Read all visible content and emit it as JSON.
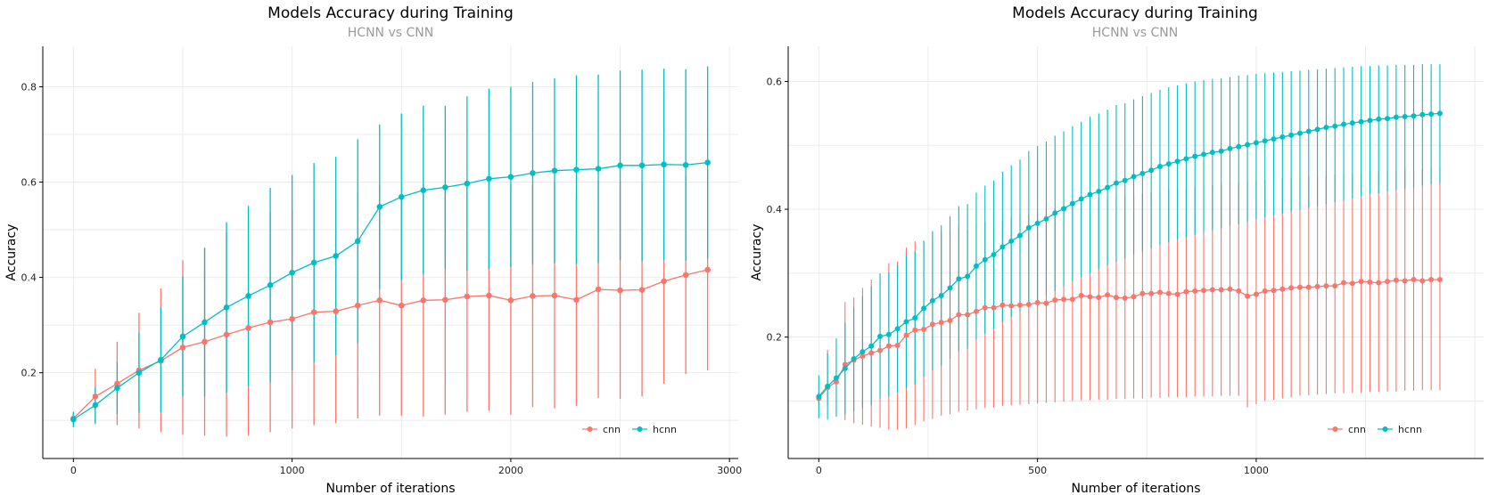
{
  "chart_data": [
    {
      "type": "line",
      "title": "Models Accuracy during Training",
      "subtitle": "HCNN vs CNN",
      "xlabel": "Number of iterations",
      "ylabel": "Accuracy",
      "xlim": [
        -140,
        3040
      ],
      "ylim": [
        0.02,
        0.885
      ],
      "xticks": [
        0,
        1000,
        2000,
        3000
      ],
      "xtick_labels": [
        "0",
        "1000",
        "2000",
        "3000"
      ],
      "yticks": [
        0.2,
        0.4,
        0.6,
        0.8
      ],
      "ytick_labels": [
        "0.2",
        "0.4",
        "0.6",
        "0.8"
      ],
      "grid": true,
      "legend_position": "bottom-right",
      "x": [
        0,
        100,
        200,
        300,
        400,
        500,
        600,
        700,
        800,
        900,
        1000,
        1100,
        1200,
        1300,
        1400,
        1500,
        1600,
        1700,
        1800,
        1900,
        2000,
        2100,
        2200,
        2300,
        2400,
        2500,
        2600,
        2700,
        2800,
        2900
      ],
      "series": [
        {
          "name": "cnn",
          "color": "#F8766D",
          "values": [
            0.104,
            0.15,
            0.177,
            0.205,
            0.225,
            0.253,
            0.265,
            0.28,
            0.294,
            0.306,
            0.313,
            0.327,
            0.329,
            0.341,
            0.352,
            0.341,
            0.352,
            0.353,
            0.36,
            0.362,
            0.352,
            0.361,
            0.362,
            0.353,
            0.375,
            0.373,
            0.374,
            0.392,
            0.405,
            0.416
          ],
          "lower": [
            0.09,
            0.092,
            0.09,
            0.083,
            0.075,
            0.07,
            0.068,
            0.066,
            0.068,
            0.075,
            0.083,
            0.09,
            0.094,
            0.104,
            0.11,
            0.11,
            0.108,
            0.112,
            0.118,
            0.12,
            0.112,
            0.128,
            0.125,
            0.13,
            0.147,
            0.145,
            0.15,
            0.177,
            0.197,
            0.205
          ],
          "upper": [
            0.118,
            0.208,
            0.265,
            0.326,
            0.377,
            0.436,
            0.462,
            0.494,
            0.52,
            0.537,
            0.543,
            0.564,
            0.564,
            0.578,
            0.594,
            0.572,
            0.596,
            0.594,
            0.602,
            0.604,
            0.592,
            0.594,
            0.599,
            0.576,
            0.603,
            0.601,
            0.598,
            0.607,
            0.613,
            0.627
          ]
        },
        {
          "name": "hcnn",
          "color": "#00BFC4",
          "values": [
            0.102,
            0.132,
            0.168,
            0.2,
            0.227,
            0.276,
            0.306,
            0.337,
            0.361,
            0.384,
            0.41,
            0.431,
            0.445,
            0.476,
            0.548,
            0.569,
            0.583,
            0.589,
            0.597,
            0.607,
            0.611,
            0.619,
            0.624,
            0.626,
            0.628,
            0.635,
            0.635,
            0.637,
            0.636,
            0.641
          ],
          "lower": [
            0.086,
            0.094,
            0.113,
            0.116,
            0.117,
            0.15,
            0.15,
            0.158,
            0.172,
            0.18,
            0.205,
            0.222,
            0.237,
            0.262,
            0.375,
            0.394,
            0.406,
            0.418,
            0.414,
            0.418,
            0.422,
            0.428,
            0.43,
            0.428,
            0.43,
            0.436,
            0.434,
            0.436,
            0.435,
            0.439
          ],
          "upper": [
            0.118,
            0.17,
            0.223,
            0.284,
            0.337,
            0.402,
            0.462,
            0.516,
            0.55,
            0.588,
            0.615,
            0.64,
            0.653,
            0.69,
            0.721,
            0.744,
            0.76,
            0.76,
            0.78,
            0.796,
            0.8,
            0.81,
            0.818,
            0.824,
            0.826,
            0.834,
            0.836,
            0.838,
            0.837,
            0.843
          ]
        }
      ]
    },
    {
      "type": "line",
      "title": "Models Accuracy during Training",
      "subtitle": "HCNN vs CNN",
      "xlabel": "Number of iterations",
      "ylabel": "Accuracy",
      "xlim": [
        -70,
        1520
      ],
      "ylim": [
        0.01,
        0.655
      ],
      "xticks": [
        0,
        500,
        1000
      ],
      "xtick_labels": [
        "0",
        "500",
        "1000"
      ],
      "yticks": [
        0.2,
        0.4,
        0.6
      ],
      "ytick_labels": [
        "0.2",
        "0.4",
        "0.6"
      ],
      "grid": true,
      "legend_position": "bottom-right",
      "x_generated": {
        "start": 0,
        "step": 20,
        "count": 72
      },
      "series": [
        {
          "name": "cnn",
          "color": "#F8766D",
          "values": [
            0.104,
            0.121,
            0.13,
            0.157,
            0.164,
            0.17,
            0.175,
            0.179,
            0.186,
            0.187,
            0.203,
            0.211,
            0.212,
            0.22,
            0.223,
            0.226,
            0.235,
            0.235,
            0.24,
            0.246,
            0.246,
            0.25,
            0.249,
            0.25,
            0.251,
            0.254,
            0.253,
            0.258,
            0.259,
            0.259,
            0.265,
            0.263,
            0.262,
            0.266,
            0.262,
            0.261,
            0.263,
            0.268,
            0.268,
            0.27,
            0.268,
            0.267,
            0.271,
            0.272,
            0.273,
            0.274,
            0.274,
            0.275,
            0.272,
            0.264,
            0.267,
            0.272,
            0.273,
            0.275,
            0.277,
            0.278,
            0.278,
            0.279,
            0.28,
            0.28,
            0.285,
            0.284,
            0.287,
            0.286,
            0.285,
            0.287,
            0.289,
            0.288,
            0.29,
            0.288,
            0.29,
            0.29
          ],
          "lower": [
            0.095,
            0.095,
            0.08,
            0.07,
            0.065,
            0.063,
            0.06,
            0.058,
            0.055,
            0.055,
            0.057,
            0.062,
            0.068,
            0.072,
            0.077,
            0.079,
            0.083,
            0.085,
            0.087,
            0.089,
            0.09,
            0.092,
            0.093,
            0.094,
            0.095,
            0.096,
            0.097,
            0.098,
            0.099,
            0.1,
            0.101,
            0.101,
            0.102,
            0.102,
            0.103,
            0.103,
            0.104,
            0.104,
            0.105,
            0.105,
            0.106,
            0.106,
            0.106,
            0.107,
            0.107,
            0.107,
            0.108,
            0.108,
            0.108,
            0.09,
            0.095,
            0.1,
            0.102,
            0.104,
            0.106,
            0.108,
            0.109,
            0.11,
            0.111,
            0.112,
            0.112,
            0.113,
            0.113,
            0.114,
            0.114,
            0.115,
            0.115,
            0.116,
            0.116,
            0.117,
            0.117,
            0.117
          ],
          "upper": [
            0.113,
            0.18,
            0.19,
            0.255,
            0.262,
            0.277,
            0.29,
            0.3,
            0.316,
            0.318,
            0.34,
            0.35,
            0.35,
            0.362,
            0.364,
            0.366,
            0.372,
            0.368,
            0.374,
            0.38,
            0.38,
            0.383,
            0.386,
            0.389,
            0.392,
            0.395,
            0.398,
            0.401,
            0.404,
            0.407,
            0.41,
            0.412,
            0.415,
            0.417,
            0.419,
            0.421,
            0.423,
            0.425,
            0.427,
            0.429,
            0.431,
            0.432,
            0.434,
            0.435,
            0.437,
            0.438,
            0.44,
            0.441,
            0.442,
            0.444,
            0.445,
            0.446,
            0.447,
            0.448,
            0.449,
            0.45,
            0.451,
            0.452,
            0.453,
            0.454,
            0.455,
            0.456,
            0.457,
            0.458,
            0.459,
            0.46,
            0.461,
            0.462,
            0.462,
            0.463,
            0.464,
            0.464
          ]
        },
        {
          "name": "hcnn",
          "color": "#00BFC4",
          "values": [
            0.107,
            0.123,
            0.136,
            0.151,
            0.166,
            0.177,
            0.186,
            0.201,
            0.204,
            0.213,
            0.224,
            0.23,
            0.245,
            0.257,
            0.265,
            0.277,
            0.291,
            0.295,
            0.311,
            0.321,
            0.329,
            0.341,
            0.35,
            0.359,
            0.371,
            0.378,
            0.385,
            0.394,
            0.401,
            0.409,
            0.416,
            0.423,
            0.428,
            0.434,
            0.441,
            0.445,
            0.451,
            0.456,
            0.461,
            0.467,
            0.471,
            0.475,
            0.479,
            0.483,
            0.486,
            0.489,
            0.491,
            0.495,
            0.498,
            0.501,
            0.504,
            0.507,
            0.51,
            0.513,
            0.516,
            0.519,
            0.522,
            0.525,
            0.528,
            0.53,
            0.533,
            0.535,
            0.537,
            0.539,
            0.541,
            0.542,
            0.544,
            0.545,
            0.546,
            0.548,
            0.549,
            0.55
          ],
          "lower": [
            0.073,
            0.071,
            0.075,
            0.079,
            0.084,
            0.089,
            0.093,
            0.104,
            0.107,
            0.113,
            0.12,
            0.126,
            0.138,
            0.148,
            0.155,
            0.166,
            0.178,
            0.182,
            0.196,
            0.205,
            0.213,
            0.223,
            0.231,
            0.239,
            0.25,
            0.257,
            0.264,
            0.272,
            0.279,
            0.287,
            0.294,
            0.3,
            0.306,
            0.312,
            0.318,
            0.323,
            0.329,
            0.334,
            0.339,
            0.344,
            0.348,
            0.352,
            0.356,
            0.36,
            0.364,
            0.367,
            0.37,
            0.374,
            0.377,
            0.38,
            0.384,
            0.387,
            0.39,
            0.393,
            0.396,
            0.399,
            0.402,
            0.405,
            0.408,
            0.411,
            0.414,
            0.417,
            0.42,
            0.423,
            0.425,
            0.428,
            0.43,
            0.432,
            0.434,
            0.437,
            0.439,
            0.441
          ],
          "upper": [
            0.14,
            0.175,
            0.198,
            0.222,
            0.247,
            0.264,
            0.279,
            0.298,
            0.301,
            0.313,
            0.328,
            0.334,
            0.351,
            0.366,
            0.375,
            0.389,
            0.405,
            0.408,
            0.426,
            0.437,
            0.445,
            0.459,
            0.469,
            0.478,
            0.491,
            0.499,
            0.506,
            0.515,
            0.522,
            0.53,
            0.537,
            0.545,
            0.55,
            0.556,
            0.563,
            0.566,
            0.572,
            0.577,
            0.582,
            0.587,
            0.591,
            0.594,
            0.597,
            0.6,
            0.602,
            0.604,
            0.605,
            0.607,
            0.609,
            0.61,
            0.612,
            0.613,
            0.614,
            0.615,
            0.616,
            0.617,
            0.618,
            0.619,
            0.62,
            0.621,
            0.622,
            0.623,
            0.624,
            0.624,
            0.625,
            0.625,
            0.626,
            0.626,
            0.626,
            0.627,
            0.627,
            0.627
          ]
        }
      ]
    }
  ]
}
